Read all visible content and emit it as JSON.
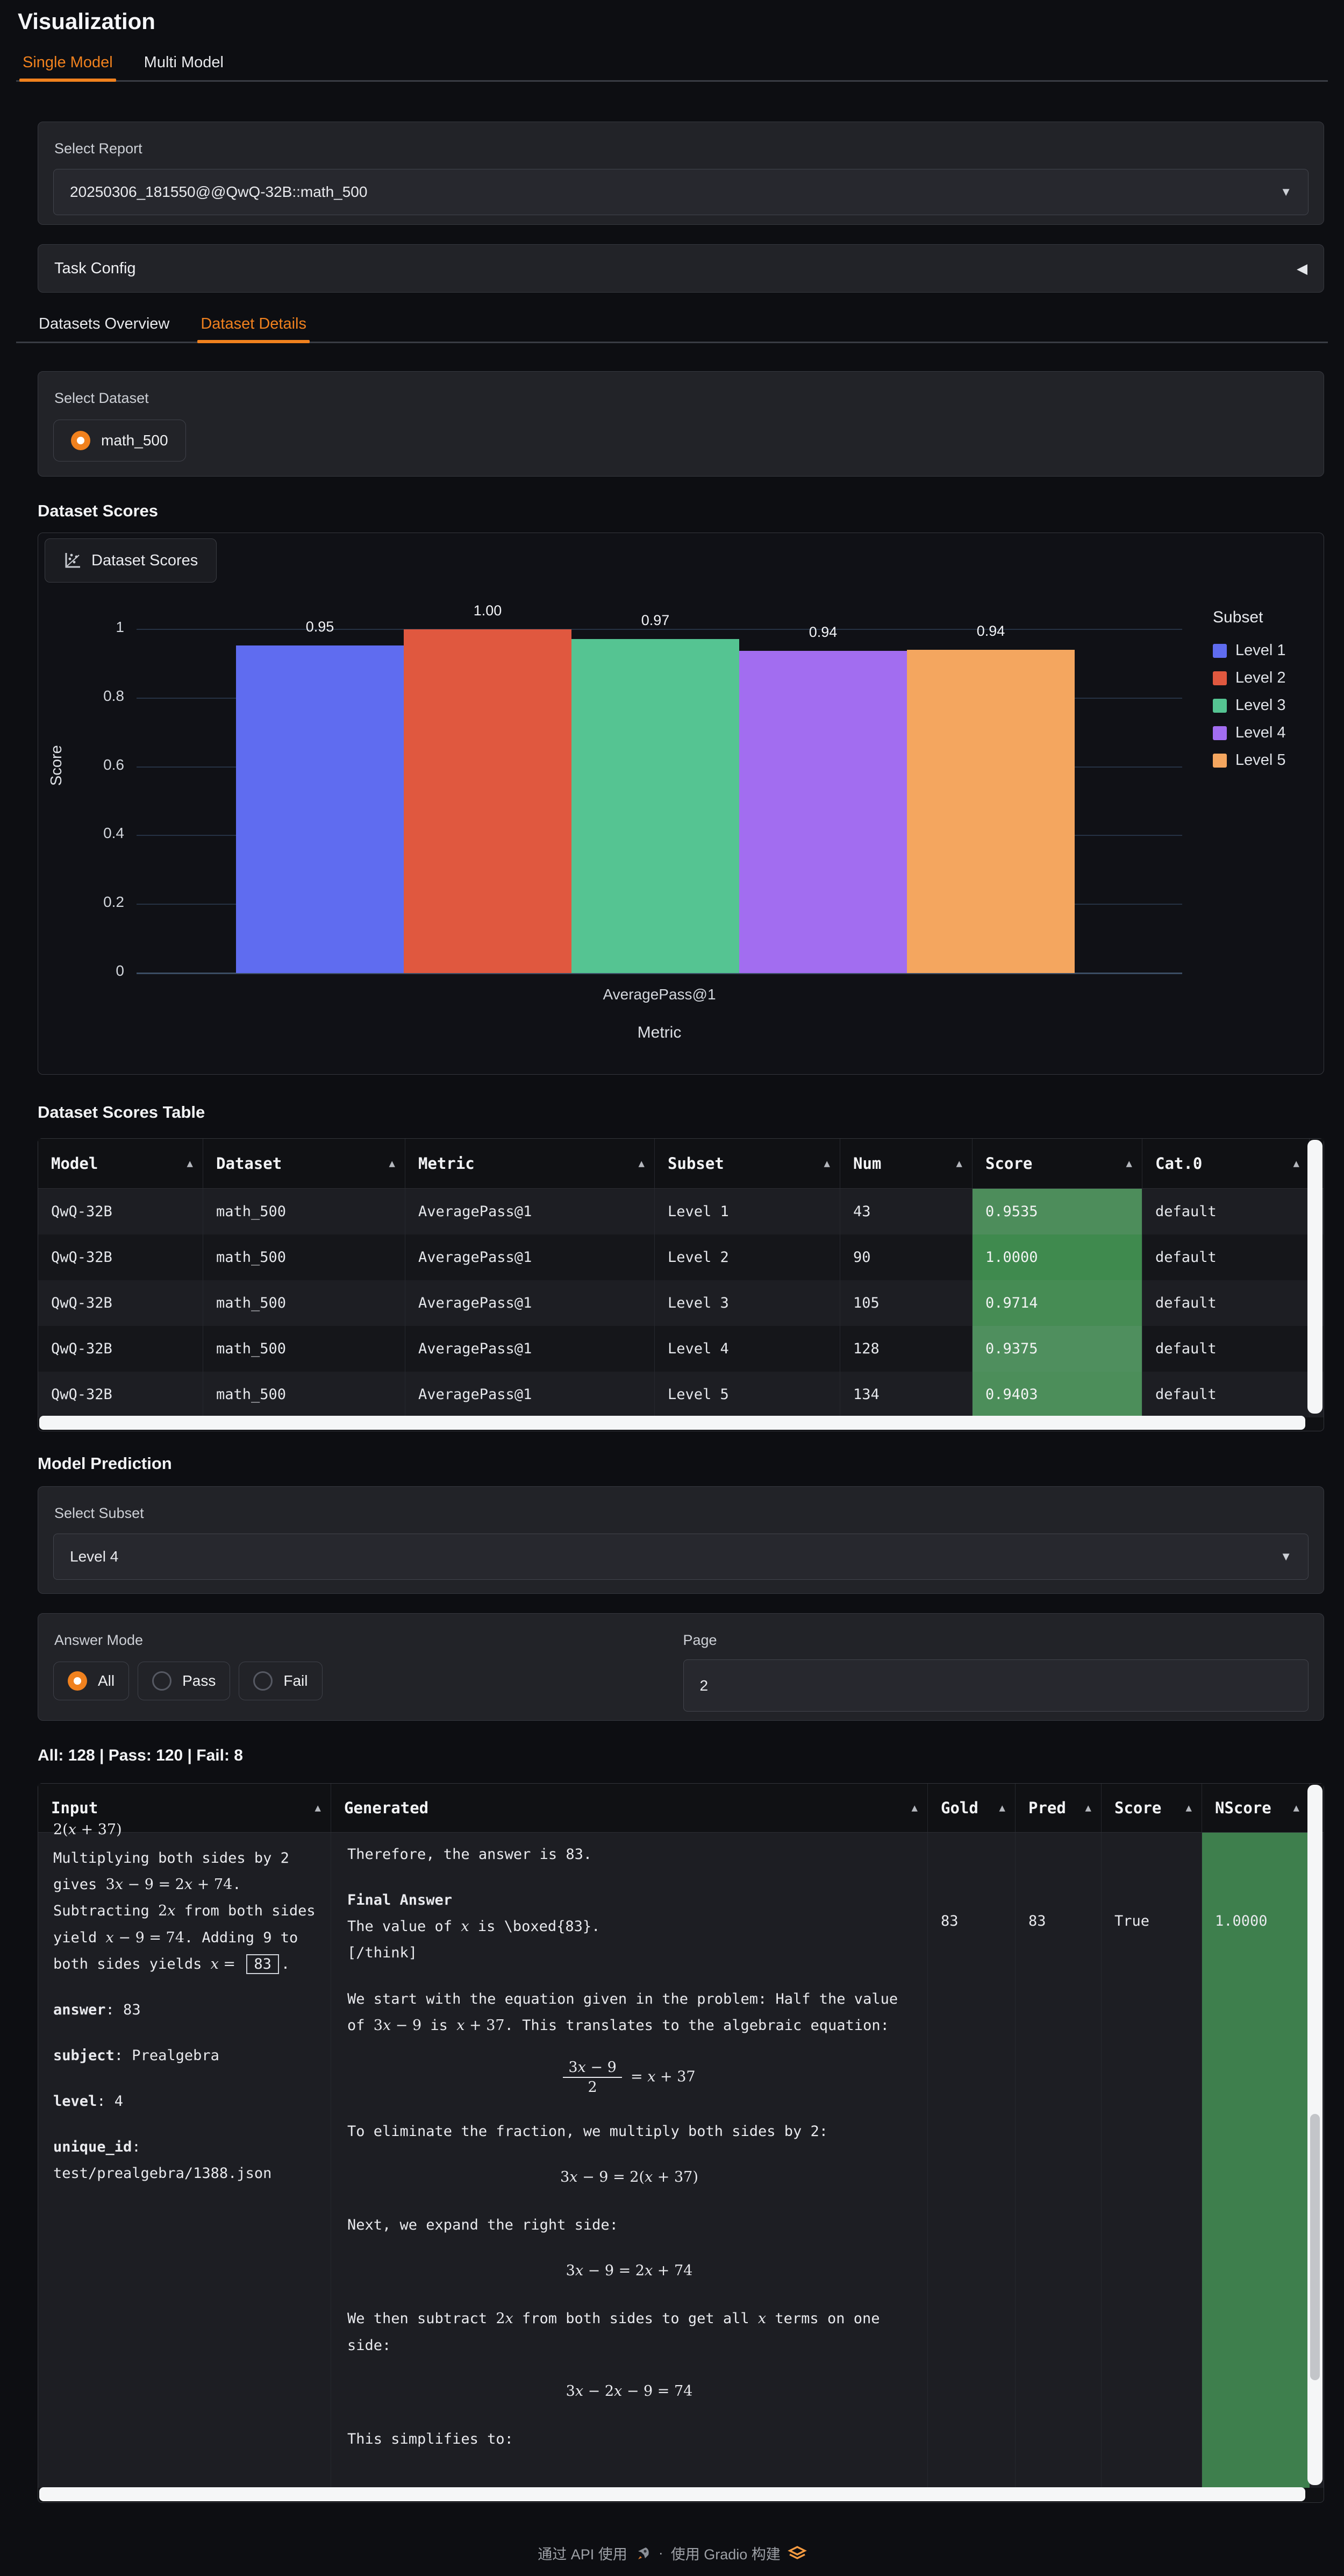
{
  "page": {
    "title": "Visualization"
  },
  "top_tabs": [
    {
      "label": "Single Model",
      "active": true
    },
    {
      "label": "Multi Model",
      "active": false
    }
  ],
  "report": {
    "label": "Select Report",
    "value": "20250306_181550@@QwQ-32B::math_500"
  },
  "task_config": {
    "label": "Task Config",
    "collapse_icon": "◀"
  },
  "dataset_tabs": [
    {
      "label": "Datasets Overview",
      "active": false
    },
    {
      "label": "Dataset Details",
      "active": true
    }
  ],
  "select_dataset": {
    "label": "Select Dataset",
    "options": [
      {
        "label": "math_500",
        "selected": true
      }
    ]
  },
  "sections": {
    "dataset_scores": "Dataset Scores",
    "dataset_scores_table": "Dataset Scores Table",
    "model_prediction": "Model Prediction"
  },
  "chart_data": {
    "type": "bar",
    "title": "Dataset Scores",
    "categories": [
      "AveragePass@1"
    ],
    "xlabel": "Metric",
    "ylabel": "Score",
    "ylim": [
      0,
      1
    ],
    "yticks": [
      "0",
      "0.2",
      "0.4",
      "0.6",
      "0.8",
      "1"
    ],
    "legend_title": "Subset",
    "legend_position": "right",
    "grid": true,
    "series": [
      {
        "name": "Level 1",
        "value": 0.9535,
        "label": "0.95",
        "color": "#5f6cf0"
      },
      {
        "name": "Level 2",
        "value": 1.0,
        "label": "1.00",
        "color": "#e0583f"
      },
      {
        "name": "Level 3",
        "value": 0.9714,
        "label": "0.97",
        "color": "#55c492"
      },
      {
        "name": "Level 4",
        "value": 0.9375,
        "label": "0.94",
        "color": "#a26df0"
      },
      {
        "name": "Level 5",
        "value": 0.9403,
        "label": "0.94",
        "color": "#f4a65f"
      }
    ]
  },
  "scores_table": {
    "columns": [
      "Model",
      "Dataset",
      "Metric",
      "Subset",
      "Num",
      "Score",
      "Cat.0"
    ],
    "rows": [
      {
        "model": "QwQ-32B",
        "dataset": "math_500",
        "metric": "AveragePass@1",
        "subset": "Level 1",
        "num": "43",
        "score": "0.9535",
        "cat": "default",
        "score_bg": "#4d8d5b"
      },
      {
        "model": "QwQ-32B",
        "dataset": "math_500",
        "metric": "AveragePass@1",
        "subset": "Level 2",
        "num": "90",
        "score": "1.0000",
        "cat": "default",
        "score_bg": "#3f8a4e"
      },
      {
        "model": "QwQ-32B",
        "dataset": "math_500",
        "metric": "AveragePass@1",
        "subset": "Level 3",
        "num": "105",
        "score": "0.9714",
        "cat": "default",
        "score_bg": "#468c54"
      },
      {
        "model": "QwQ-32B",
        "dataset": "math_500",
        "metric": "AveragePass@1",
        "subset": "Level 4",
        "num": "128",
        "score": "0.9375",
        "cat": "default",
        "score_bg": "#4f8f5e"
      },
      {
        "model": "QwQ-32B",
        "dataset": "math_500",
        "metric": "AveragePass@1",
        "subset": "Level 5",
        "num": "134",
        "score": "0.9403",
        "cat": "default",
        "score_bg": "#4c8e5a"
      }
    ]
  },
  "select_subset": {
    "label": "Select Subset",
    "value": "Level 4"
  },
  "answer_mode": {
    "label": "Answer Mode",
    "options": [
      "All",
      "Pass",
      "Fail"
    ],
    "selected": "All"
  },
  "page_input": {
    "label": "Page",
    "value": "2"
  },
  "counts_line": "All: 128 | Pass: 120 | Fail: 8",
  "prediction_table": {
    "columns": [
      "Input",
      "Generated",
      "Gold",
      "Pred",
      "Score",
      "NScore"
    ],
    "row": {
      "input_blocks": [
        {
          "type": "p",
          "clip": true,
          "lines": [
            "$2(x + 37)$"
          ]
        },
        {
          "type": "p",
          "lines": [
            "Multiplying both sides by 2 gives $3x − 9 = 2x + 74$. Subtracting $2x$ from both sides yield $x − 9 = 74$. Adding 9 to both sides yields $x =$ [[83]]."
          ]
        },
        {
          "type": "p",
          "lines": [
            "**answer**: 83"
          ]
        },
        {
          "type": "p",
          "lines": [
            "**subject**: Prealgebra"
          ]
        },
        {
          "type": "p",
          "lines": [
            "**level**: 4"
          ]
        },
        {
          "type": "p",
          "lines": [
            "**unique_id**: test/prealgebra/1388.json"
          ]
        }
      ],
      "generated_blocks": [
        {
          "type": "p",
          "lines": [
            "Therefore, the answer is 83."
          ]
        },
        {
          "type": "p",
          "lines": [
            "**Final Answer**",
            "The value of $x$ is \\boxed{83}.",
            "[/think]"
          ]
        },
        {
          "type": "p",
          "lines": [
            "We start with the equation given in the problem: Half the value of $3x − 9$ is $x + 37$. This translates to the algebraic equation:"
          ]
        },
        {
          "type": "frac",
          "num": "3x − 9",
          "den": "2",
          "rhs": "= x + 37"
        },
        {
          "type": "p",
          "lines": [
            "To eliminate the fraction, we multiply both sides by 2:"
          ]
        },
        {
          "type": "eq",
          "text": "$3x − 9 = 2(x + 37)$"
        },
        {
          "type": "p",
          "lines": [
            "Next, we expand the right side:"
          ]
        },
        {
          "type": "eq",
          "text": "$3x − 9 = 2x + 74$"
        },
        {
          "type": "p",
          "lines": [
            "We then subtract $2x$ from both sides to get all $x$ terms on one side:"
          ]
        },
        {
          "type": "eq",
          "text": "$3x − 2x − 9 = 74$"
        },
        {
          "type": "p",
          "lines": [
            "This simplifies to:"
          ]
        }
      ],
      "gold": "83",
      "pred": "83",
      "score": "True",
      "nscore": "1.0000",
      "nscore_bg": "#3e7f4d"
    }
  },
  "footer": {
    "use_api": "通过 API 使用",
    "sep": "·",
    "built_with": "使用 Gradio 构建"
  },
  "colors": {
    "accent": "#f0811e",
    "score_green": "#4a8c58",
    "scrollbar": "#f5f6f7"
  }
}
